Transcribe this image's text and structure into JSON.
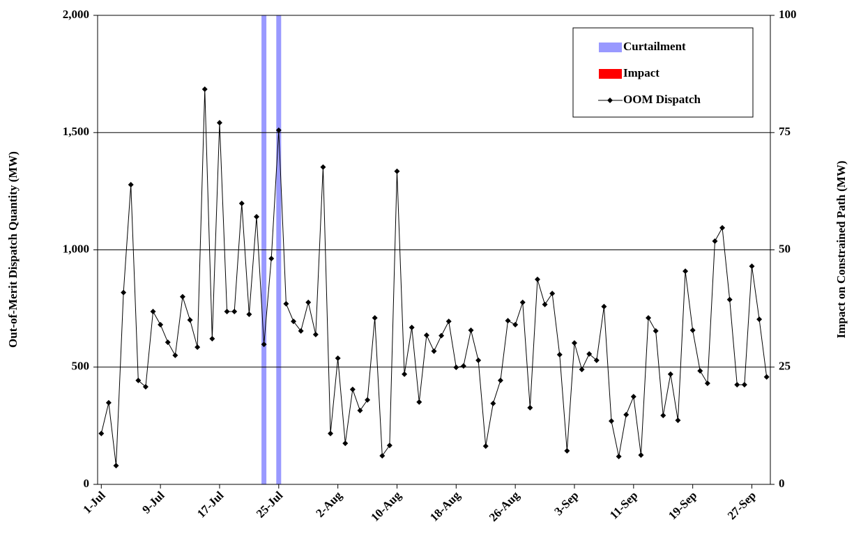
{
  "chart_data": {
    "type": "line",
    "ylabel": "Out-of-Merit Dispatch Quantity (MW)",
    "y2label": "Impact on Constrained Path (MW)",
    "categories": [
      "1-Jul",
      null,
      null,
      null,
      null,
      null,
      null,
      null,
      "9-Jul",
      null,
      null,
      null,
      null,
      null,
      null,
      null,
      "17-Jul",
      null,
      null,
      null,
      null,
      null,
      null,
      null,
      "25-Jul",
      null,
      null,
      null,
      null,
      null,
      null,
      null,
      "2-Aug",
      null,
      null,
      null,
      null,
      null,
      null,
      null,
      "10-Aug",
      null,
      null,
      null,
      null,
      null,
      null,
      null,
      "18-Aug",
      null,
      null,
      null,
      null,
      null,
      null,
      null,
      "26-Aug",
      null,
      null,
      null,
      null,
      null,
      null,
      null,
      "3-Sep",
      null,
      null,
      null,
      null,
      null,
      null,
      null,
      "11-Sep",
      null,
      null,
      null,
      null,
      null,
      null,
      null,
      "19-Sep",
      null,
      null,
      null,
      null,
      null,
      null,
      null,
      "27-Sep",
      null,
      null
    ],
    "series": [
      {
        "name": "Curtailment",
        "color": "#9999ff",
        "type": "bar",
        "axis": "y2",
        "values": [
          null,
          null,
          null,
          null,
          null,
          null,
          null,
          null,
          null,
          null,
          null,
          null,
          null,
          null,
          null,
          null,
          null,
          null,
          null,
          null,
          null,
          null,
          100,
          null,
          100,
          null,
          null,
          null,
          null,
          null,
          null,
          null,
          null,
          null,
          null,
          null,
          null,
          null,
          null,
          null,
          null,
          null,
          null,
          null,
          null,
          null,
          null,
          null,
          null,
          null,
          null,
          null,
          null,
          null,
          null,
          null,
          null,
          null,
          null,
          null,
          null,
          null,
          null,
          null,
          null,
          null,
          null,
          null,
          null,
          null,
          null,
          null,
          null,
          null,
          null,
          null,
          null,
          null,
          null,
          null,
          null,
          null,
          null,
          null,
          null,
          null,
          null,
          null,
          null,
          null,
          null
        ]
      },
      {
        "name": "Impact",
        "color": "#ff0000",
        "type": "bar",
        "axis": "y2",
        "values": [
          null,
          null,
          null,
          null,
          null,
          null,
          null,
          null,
          null,
          null,
          null,
          null,
          null,
          null,
          null,
          null,
          null,
          null,
          null,
          null,
          null,
          null,
          null,
          null,
          null,
          null,
          null,
          null,
          null,
          null,
          null,
          null,
          null,
          null,
          null,
          null,
          null,
          null,
          null,
          null,
          null,
          null,
          null,
          null,
          null,
          null,
          null,
          null,
          null,
          null,
          null,
          null,
          null,
          null,
          null,
          null,
          null,
          null,
          null,
          null,
          null,
          null,
          null,
          null,
          null,
          null,
          null,
          null,
          null,
          null,
          null,
          null,
          null,
          null,
          null,
          null,
          null,
          null,
          null,
          null,
          null,
          null,
          null,
          null,
          null,
          null,
          null,
          null,
          null,
          null,
          null
        ]
      },
      {
        "name": "OOM Dispatch",
        "color": "#000000",
        "type": "line",
        "values": [
          217,
          348,
          80,
          818,
          1278,
          443,
          416,
          737,
          681,
          606,
          550,
          800,
          701,
          585,
          1685,
          621,
          1542,
          737,
          737,
          1198,
          725,
          1141,
          597,
          963,
          1510,
          770,
          695,
          654,
          776,
          639,
          1353,
          217,
          538,
          175,
          405,
          315,
          360,
          710,
          122,
          166,
          1335,
          470,
          669,
          351,
          636,
          568,
          634,
          695,
          499,
          505,
          657,
          529,
          163,
          345,
          443,
          698,
          681,
          776,
          327,
          874,
          767,
          814,
          553,
          143,
          603,
          490,
          556,
          529,
          758,
          270,
          119,
          297,
          374,
          125,
          710,
          654,
          294,
          470,
          273,
          909,
          657,
          484,
          431,
          1037,
          1094,
          788,
          425,
          425,
          930,
          704,
          458
        ]
      }
    ],
    "ylim": [
      0,
      2000
    ],
    "yticks": [
      0,
      500,
      {
        "value": 1000,
        "label": "1,000"
      },
      {
        "value": 1500,
        "label": "1,500"
      },
      {
        "value": 2000,
        "label": "2,000"
      }
    ],
    "y2lim": [
      0,
      100
    ],
    "y2ticks": [
      0,
      25,
      50,
      75,
      100
    ],
    "grid": true,
    "legend": "upper right"
  }
}
